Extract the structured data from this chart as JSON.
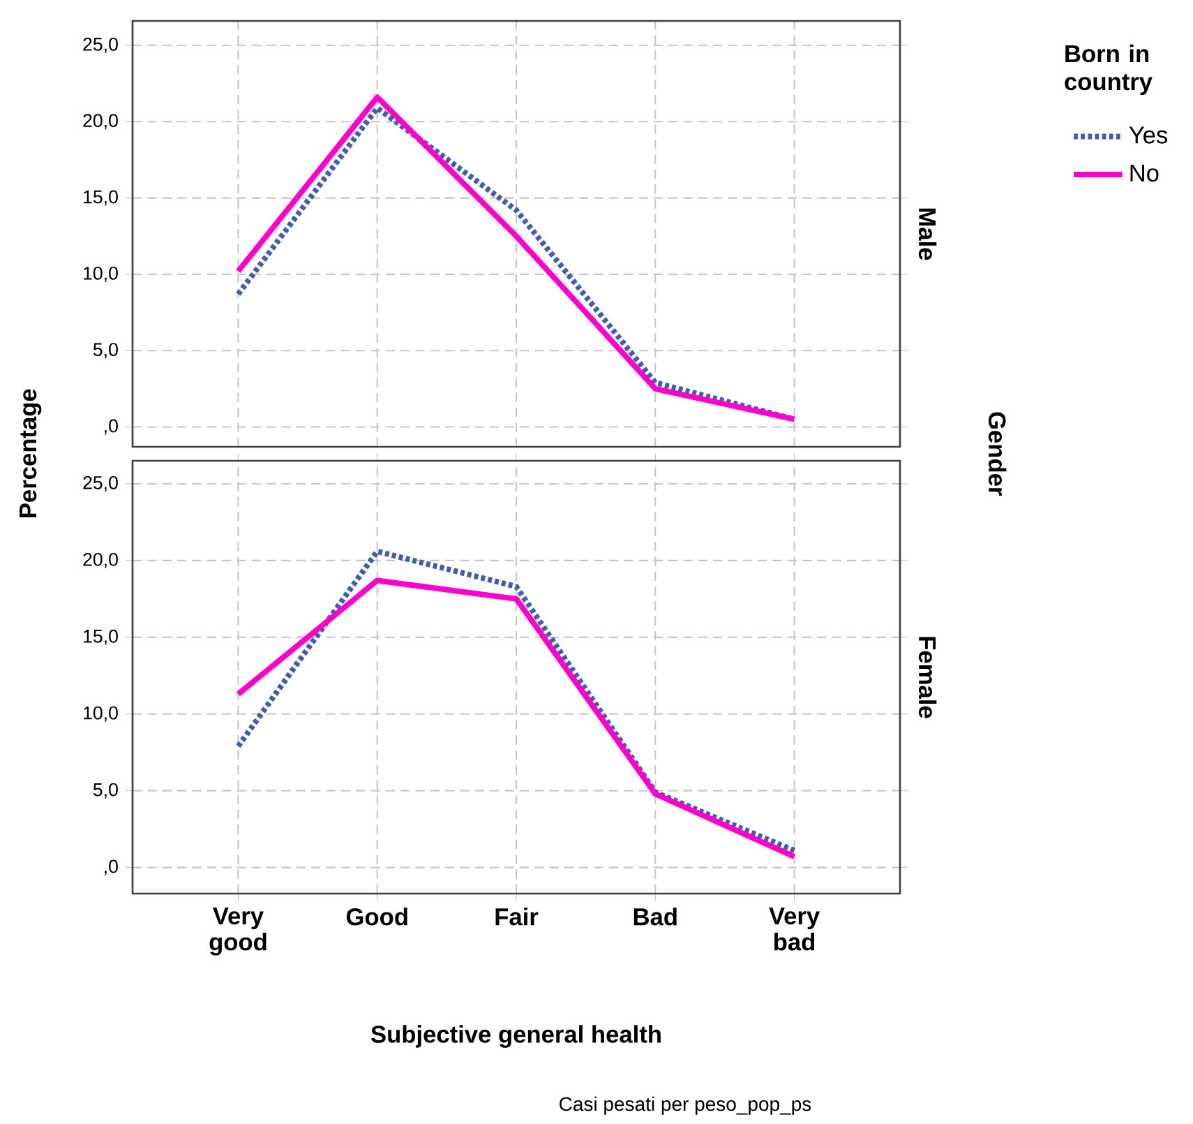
{
  "chart_data": [
    {
      "type": "line",
      "y2label": "Male",
      "ylabel": "Percentage",
      "legend_title": "Born in country",
      "annotations": [
        "Gender"
      ],
      "categories": [
        null,
        null,
        null,
        null,
        null
      ],
      "series": [
        {
          "name": "Yes",
          "color": "#3f5bb5",
          "line_style": "dotted",
          "values": [
            8.7,
            20.9,
            14.2,
            2.9,
            0.5
          ]
        },
        {
          "name": "No",
          "color": "#ff00cc",
          "line_style": "solid",
          "values": [
            10.2,
            21.6,
            12.5,
            2.5,
            0.5
          ]
        }
      ],
      "ylim": [
        -1.3,
        26.6
      ],
      "yticks": [
        {
          "value": 0,
          "label": ",0"
        },
        {
          "value": 5,
          "label": "5,0"
        },
        {
          "value": 10,
          "label": "10,0"
        },
        {
          "value": 15,
          "label": "15,0"
        },
        {
          "value": 20,
          "label": "20,0"
        },
        {
          "value": 25,
          "label": "25,0"
        }
      ],
      "grid": true,
      "legend": "right",
      "marker": "none",
      "tick_labels": "y"
    },
    {
      "type": "line",
      "y2label": "Female",
      "xlabel": "Subjective general health",
      "annotations": [
        "Casi pesati per peso_pop_ps"
      ],
      "categories": [
        "Very good",
        "Good",
        "Fair",
        "Bad",
        "Very bad"
      ],
      "series": [
        {
          "color": "#3f5bb5",
          "line_style": "dotted",
          "values": [
            7.9,
            20.6,
            18.3,
            4.9,
            1.1
          ]
        },
        {
          "color": "#ff00cc",
          "line_style": "solid",
          "values": [
            11.3,
            18.7,
            17.5,
            4.8,
            0.7
          ]
        }
      ],
      "ylim": [
        -1.7,
        26.5
      ],
      "yticks": [
        {
          "value": 0,
          "label": ",0"
        },
        {
          "value": 5,
          "label": "5,0"
        },
        {
          "value": 10,
          "label": "10,0"
        },
        {
          "value": 15,
          "label": "15,0"
        },
        {
          "value": 20,
          "label": "20,0"
        },
        {
          "value": 25,
          "label": "25,0"
        }
      ],
      "grid": true,
      "marker": "none"
    }
  ]
}
